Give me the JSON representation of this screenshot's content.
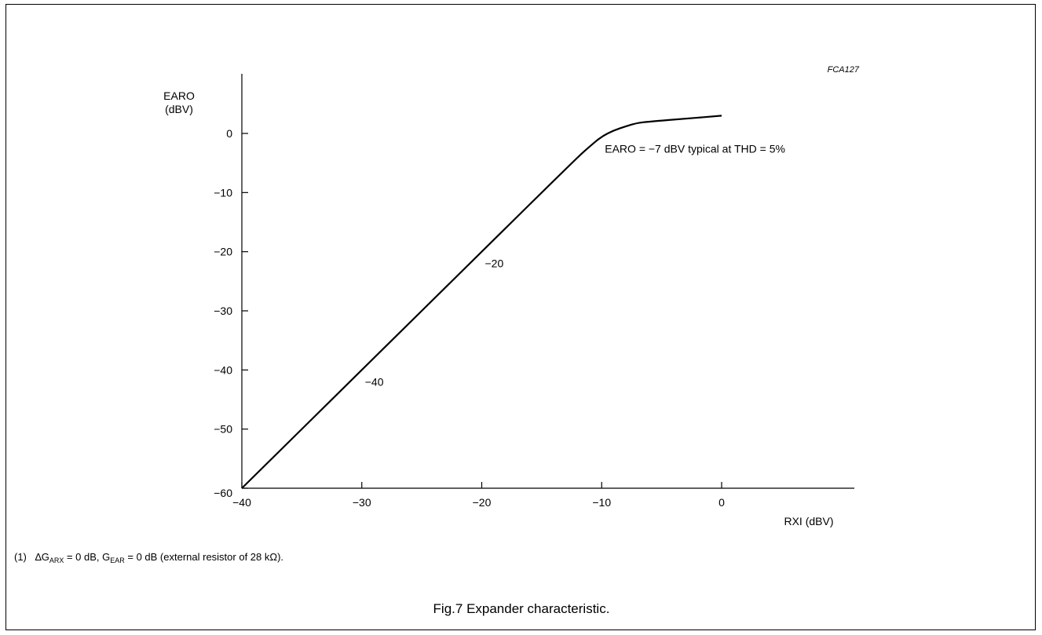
{
  "figure_code": "FCA127",
  "caption": "Fig.7  Expander characteristic.",
  "footnote": {
    "number": "(1)",
    "delta": "∆G",
    "arx_sub": "ARX",
    "mid": " = 0 dB, G",
    "ear_sub": "EAR",
    "tail": " = 0 dB (external resistor of 28 kΩ)."
  },
  "chart_data": {
    "type": "line",
    "xlabel": "RXI (dBV)",
    "ylabel_line1": "EARO",
    "ylabel_line2": "(dBV)",
    "xlim": [
      -40,
      0
    ],
    "ylim": [
      -60,
      0
    ],
    "x_ticks": [
      -40,
      -30,
      -20,
      -10,
      0
    ],
    "x_tick_labels": [
      "−40",
      "−30",
      "−20",
      "−10",
      "0"
    ],
    "y_ticks": [
      0,
      -10,
      -20,
      -30,
      -40,
      -50,
      -60
    ],
    "y_tick_labels": [
      "0",
      "−10",
      "−20",
      "−30",
      "−40",
      "−50",
      "−60"
    ],
    "grid": false,
    "series": [
      {
        "x": [
          -40,
          -30,
          -20,
          -12,
          -11,
          -10,
          -9,
          -8,
          -7,
          -6,
          -3,
          0
        ],
        "y": [
          -60,
          -40,
          -20,
          -4,
          -2.2,
          -0.5,
          0.5,
          1.2,
          1.8,
          2.0,
          2.5,
          3.0
        ]
      }
    ],
    "annotations": [
      {
        "text": "EARO = −7 dBV typical at THD = 5%",
        "x": -10,
        "y": -2.6
      },
      {
        "text": "−20",
        "x": -20,
        "y": -22
      },
      {
        "text": "−40",
        "x": -30,
        "y": -42
      }
    ]
  }
}
